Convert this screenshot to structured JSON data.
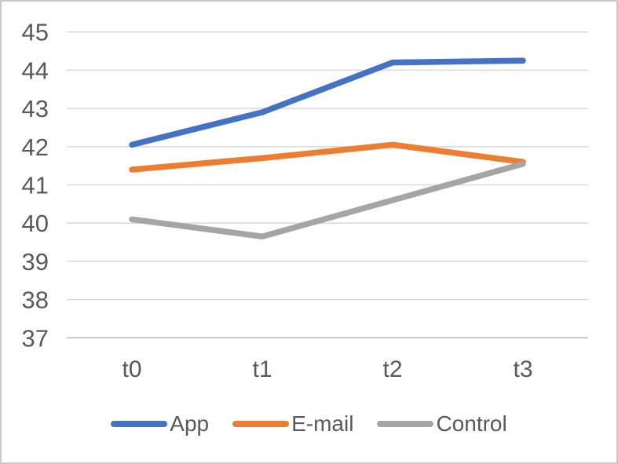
{
  "chart_data": {
    "type": "line",
    "title": "",
    "xlabel": "",
    "ylabel": "",
    "categories": [
      "t0",
      "t1",
      "t2",
      "t3"
    ],
    "series": [
      {
        "name": "App",
        "color": "#4472C4",
        "values": [
          42.05,
          42.9,
          44.2,
          44.25
        ]
      },
      {
        "name": "E-mail",
        "color": "#ED7D31",
        "values": [
          41.4,
          41.7,
          42.05,
          41.6
        ]
      },
      {
        "name": "Control",
        "color": "#A5A5A5",
        "values": [
          40.1,
          39.65,
          40.6,
          41.55
        ]
      }
    ],
    "ylim": [
      37,
      45
    ],
    "yticks": [
      37,
      38,
      39,
      40,
      41,
      42,
      43,
      44,
      45
    ],
    "grid": true,
    "legend_position": "bottom",
    "colors": {
      "gridline": "#D9D9D9",
      "axis_line": "#C6C6C6",
      "tick_label": "#595959",
      "background": "#FFFFFF",
      "frame_border": "#C9C9C9"
    }
  }
}
